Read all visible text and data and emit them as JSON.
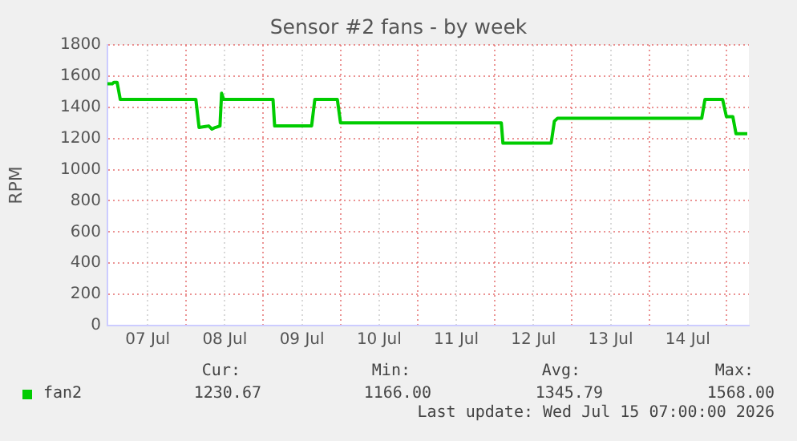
{
  "chart_data": {
    "type": "line",
    "title": "Sensor #2 fans - by week",
    "ylabel": "RPM",
    "x": [
      "2026-07-06T23:30",
      "2026-07-07T01:00",
      "2026-07-07T01:30",
      "2026-07-07T02:30",
      "2026-07-07T03:30",
      "2026-07-08T03:00",
      "2026-07-08T04:00",
      "2026-07-08T07:00",
      "2026-07-08T08:00",
      "2026-07-08T09:00",
      "2026-07-08T10:30",
      "2026-07-08T11:00",
      "2026-07-08T11:40",
      "2026-07-09T03:00",
      "2026-07-09T03:30",
      "2026-07-09T15:00",
      "2026-07-09T16:00",
      "2026-07-09T23:00",
      "2026-07-10T00:00",
      "2026-07-12T02:00",
      "2026-07-12T02:30",
      "2026-07-12T17:30",
      "2026-07-12T18:30",
      "2026-07-12T19:30",
      "2026-07-14T16:20",
      "2026-07-14T17:20",
      "2026-07-14T22:50",
      "2026-07-15T00:00",
      "2026-07-15T02:00",
      "2026-07-15T03:00",
      "2026-07-15T06:30"
    ],
    "series": [
      {
        "name": "fan2",
        "color": "#00cc00",
        "values": [
          1550,
          1550,
          1560,
          1560,
          1450,
          1450,
          1270,
          1280,
          1260,
          1270,
          1280,
          1490,
          1450,
          1450,
          1280,
          1280,
          1450,
          1450,
          1300,
          1300,
          1170,
          1170,
          1310,
          1330,
          1330,
          1450,
          1450,
          1340,
          1340,
          1230,
          1230
        ]
      }
    ],
    "xlim": [
      "2026-07-06T23:30",
      "2026-07-15T07:00"
    ],
    "xticks": [
      {
        "value": "2026-07-07T12:00",
        "label": "07 Jul"
      },
      {
        "value": "2026-07-08",
        "label": null
      },
      {
        "value": "2026-07-08T12:00",
        "label": "08 Jul"
      },
      {
        "value": "2026-07-09",
        "label": null
      },
      {
        "value": "2026-07-09T12:00",
        "label": "09 Jul"
      },
      {
        "value": "2026-07-10",
        "label": null
      },
      {
        "value": "2026-07-10T12:00",
        "label": "10 Jul"
      },
      {
        "value": "2026-07-11",
        "label": null
      },
      {
        "value": "2026-07-11T12:00",
        "label": "11 Jul"
      },
      {
        "value": "2026-07-12",
        "label": null
      },
      {
        "value": "2026-07-12T12:00",
        "label": "12 Jul"
      },
      {
        "value": "2026-07-13",
        "label": null
      },
      {
        "value": "2026-07-13T12:00",
        "label": "13 Jul"
      },
      {
        "value": "2026-07-14",
        "label": null
      },
      {
        "value": "2026-07-14T12:00",
        "label": "14 Jul"
      },
      {
        "value": "2026-07-15",
        "label": null
      }
    ],
    "ylim": [
      0,
      1800
    ],
    "yticks": [
      0,
      200,
      400,
      600,
      800,
      1000,
      1200,
      1400,
      1600,
      1800
    ],
    "grid": true,
    "legend": "bottom left",
    "annotations": [
      "Cur:",
      "1230.67",
      "Min:",
      "1166.00",
      "Avg:",
      "1345.79",
      "Max:",
      "1568.00",
      "Last update: Wed Jul 15 07:00:00 2026"
    ]
  }
}
